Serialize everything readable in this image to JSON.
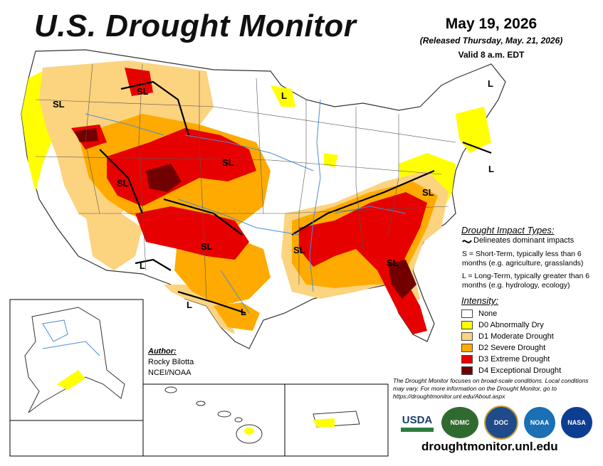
{
  "header": {
    "title": "U.S. Drought Monitor",
    "date": "May 19, 2026",
    "released": "(Released Thursday, May. 21, 2026)",
    "valid": "Valid 8 a.m. EDT"
  },
  "impact": {
    "title": "Drought Impact Types:",
    "delineates": "Delineates dominant impacts",
    "short_term": "S = Short-Term, typically less than 6 months (e.g. agriculture, grasslands)",
    "long_term": "L = Long-Term, typically greater than 6 months (e.g. hydrology, ecology)"
  },
  "intensity": {
    "title": "Intensity:",
    "items": [
      {
        "label": "None",
        "color": "#ffffff"
      },
      {
        "label": "D0 Abnormally Dry",
        "color": "#ffff00"
      },
      {
        "label": "D1 Moderate Drought",
        "color": "#fcd37f"
      },
      {
        "label": "D2 Severe Drought",
        "color": "#ffaa00"
      },
      {
        "label": "D3 Extreme Drought",
        "color": "#e60000"
      },
      {
        "label": "D4 Exceptional Drought",
        "color": "#730000"
      }
    ]
  },
  "author": {
    "label": "Author:",
    "name": "Rocky Bilotta",
    "org": "NCEI/NOAA"
  },
  "note": "The Drought Monitor focuses on broad-scale conditions. Local conditions may vary. For more information on the Drought Monitor, go to https://droughtmonitor.unl.edu/About.aspx",
  "url": "droughtmonitor.unl.edu",
  "logos": {
    "usda": "USDA",
    "ndmc": "NDMC",
    "doc": "DOC",
    "noaa": "NOAA",
    "nasa": "NASA"
  },
  "map_labels": [
    {
      "text": "SL"
    },
    {
      "text": "SL"
    },
    {
      "text": "L"
    },
    {
      "text": "L"
    },
    {
      "text": "SL"
    },
    {
      "text": "SL"
    },
    {
      "text": "SL"
    },
    {
      "text": "SL"
    },
    {
      "text": "SL"
    },
    {
      "text": "SL"
    },
    {
      "text": "L"
    },
    {
      "text": "L"
    },
    {
      "text": "L"
    },
    {
      "text": "L"
    }
  ]
}
